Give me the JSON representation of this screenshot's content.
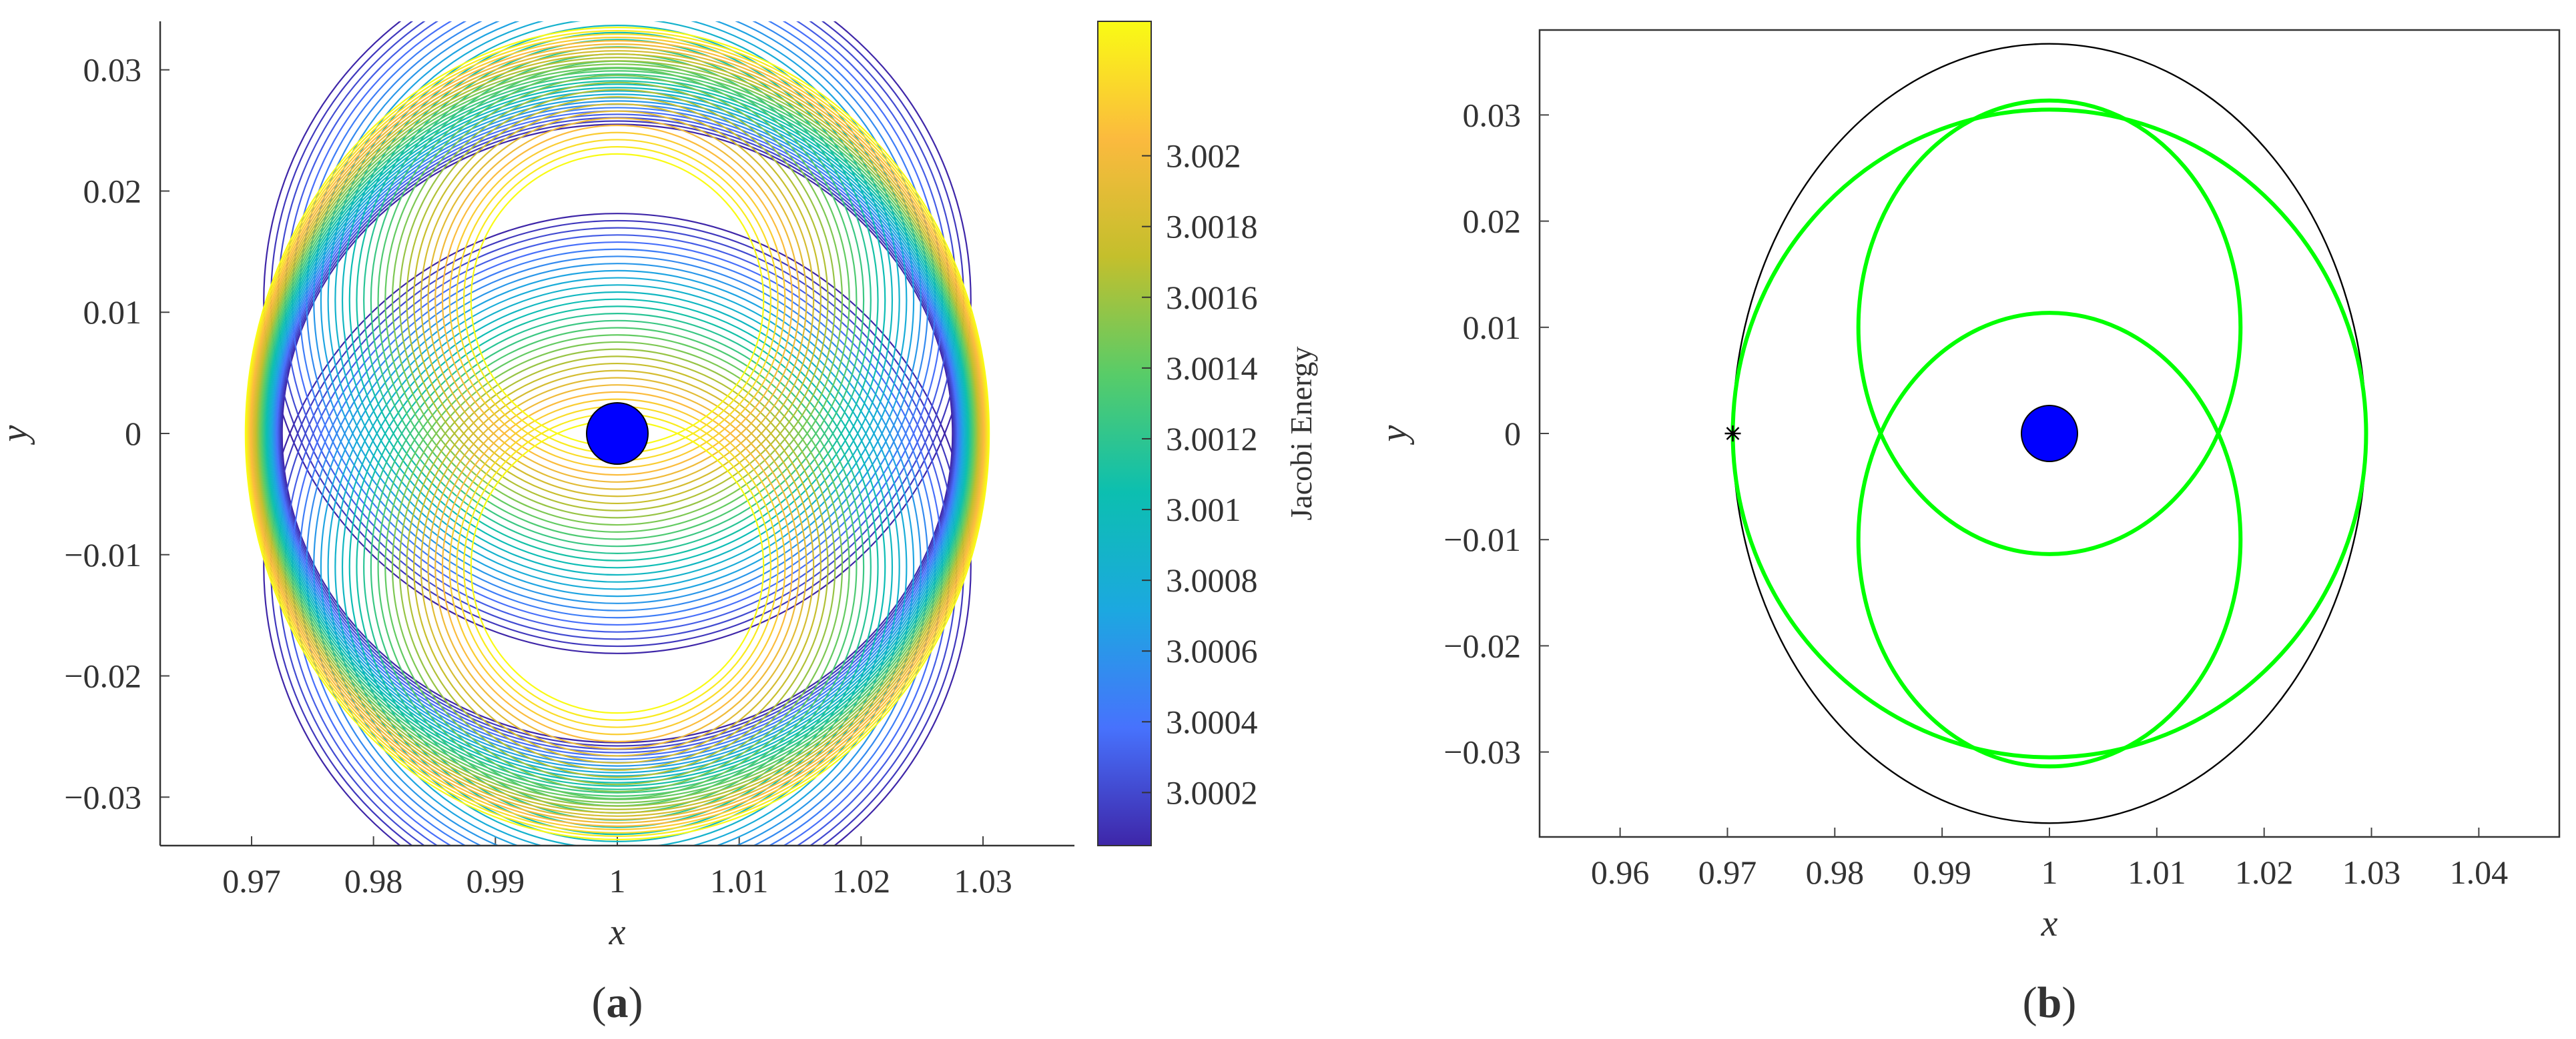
{
  "figure": {
    "panels": [
      "a",
      "b"
    ]
  },
  "chart_data": [
    {
      "panel": "a",
      "caption_letter": "a",
      "type": "line",
      "description_kind": "family of periodic orbits colored by Jacobi energy",
      "xlabel": "x",
      "ylabel": "y",
      "xlim": [
        0.9625,
        1.0375
      ],
      "ylim": [
        -0.034,
        0.034
      ],
      "xticks": [
        0.97,
        0.98,
        0.99,
        1,
        1.01,
        1.02,
        1.03
      ],
      "xtick_labels": [
        "0.97",
        "0.98",
        "0.99",
        "1",
        "1.01",
        "1.02",
        "1.03"
      ],
      "yticks": [
        0.03,
        0.02,
        0.01,
        0,
        -0.01,
        -0.02,
        -0.03
      ],
      "ytick_labels": [
        "0.03",
        "0.02",
        "0.01",
        "0",
        "−0.01",
        "−0.02",
        "−0.03"
      ],
      "grid": false,
      "primary_body": {
        "x": 1,
        "y": 0,
        "color": "#0000ff"
      },
      "orbit_family": {
        "count": 30,
        "energy_range": [
          3.00005,
          3.00238
        ],
        "semi_axis_x_range": [
          0.0275,
          0.0305
        ],
        "semi_axis_y_range": [
          0.0255,
          0.0335
        ],
        "inner_loop_radius_range": [
          0.012,
          0.029
        ]
      },
      "colorbar": {
        "label": "Jacobi Energy",
        "range": [
          3.00005,
          3.00238
        ],
        "ticks": [
          3.002,
          3.0018,
          3.0016,
          3.0014,
          3.0012,
          3.001,
          3.0008,
          3.0006,
          3.0004,
          3.0002
        ],
        "tick_labels": [
          "3.002",
          "3.0018",
          "3.0016",
          "3.0014",
          "3.0012",
          "3.001",
          "3.0008",
          "3.0006",
          "3.0004",
          "3.0002"
        ],
        "colormap": [
          "#3e26a8",
          "#4772fd",
          "#1ca8e0",
          "#0cbfb0",
          "#58cc68",
          "#c4bf2c",
          "#fbba3e",
          "#f9fb14"
        ]
      }
    },
    {
      "panel": "b",
      "caption_letter": "b",
      "type": "line",
      "xlabel": "x",
      "ylabel": "y",
      "xlim": [
        0.9525,
        1.0475
      ],
      "ylim": [
        -0.038,
        0.038
      ],
      "xticks": [
        0.96,
        0.97,
        0.98,
        0.99,
        1,
        1.01,
        1.02,
        1.03,
        1.04
      ],
      "xtick_labels": [
        "0.96",
        "0.97",
        "0.98",
        "0.99",
        "1",
        "1.01",
        "1.02",
        "1.03",
        "1.04"
      ],
      "yticks": [
        0.03,
        0.02,
        0.01,
        0,
        -0.01,
        -0.02,
        -0.03
      ],
      "ytick_labels": [
        "0.03",
        "0.02",
        "0.01",
        "0",
        "−0.01",
        "−0.02",
        "−0.03"
      ],
      "grid": false,
      "primary_body": {
        "x": 1,
        "y": 0,
        "color": "#0000ff"
      },
      "series": [
        {
          "name": "periodic orbit",
          "color": "#00ff00",
          "outer_semi_axes": [
            0.0295,
            0.0305
          ],
          "loop_radius": 0.0178,
          "loop_center_offset": 0.01
        },
        {
          "name": "boundary ellipse",
          "color": "#000000",
          "center": [
            1,
            0
          ],
          "semi_axes": [
            0.0295,
            0.0367
          ]
        },
        {
          "name": "start point",
          "color": "#000000",
          "x": 0.9705,
          "y": 0
        }
      ]
    }
  ]
}
